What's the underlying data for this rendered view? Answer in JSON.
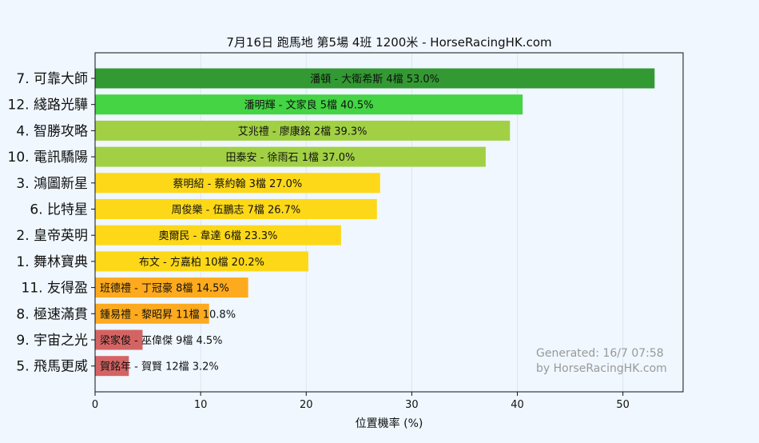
{
  "chart_data": {
    "type": "bar",
    "orientation": "horizontal",
    "title": "7月16日  跑馬地  第5場  4班  1200米 - HorseRacingHK.com",
    "xlabel": "位置機率 (%)",
    "ylabel": "",
    "xlim": [
      0,
      55.7
    ],
    "xticks": [
      "0",
      "10",
      "20",
      "30",
      "40",
      "50"
    ],
    "grid": true,
    "categories": [
      "7. 可靠大師",
      "12. 綫路光驊",
      "4. 智勝攻略",
      "10. 電訊驕陽",
      "3. 鴻圖新星",
      "6. 比特星",
      "2. 皇帝英明",
      "1. 舞林寶典",
      "11. 友得盈",
      "8. 極速滿貫",
      "9. 宇宙之光",
      "5. 飛馬更威"
    ],
    "values": [
      53.0,
      40.5,
      39.3,
      37.0,
      27.0,
      26.7,
      23.3,
      20.2,
      14.5,
      10.8,
      4.5,
      3.2
    ],
    "bar_labels": [
      "潘頓 - 大衛希斯 4檔  53.0%",
      "潘明輝 - 文家良 5檔  40.5%",
      "艾兆禮 - 廖康銘 2檔  39.3%",
      "田泰安 - 徐雨石 1檔  37.0%",
      "蔡明紹 - 蔡約翰 3檔  27.0%",
      "周俊樂 - 伍鵬志 7檔  26.7%",
      "奧爾民 - 韋達 6檔  23.3%",
      "布文 - 方嘉柏 10檔  20.2%",
      "班德禮 - 丁冠豪 8檔  14.5%",
      "鍾易禮 - 黎昭昇 11檔  10.8%",
      "梁家俊 - 巫偉傑 9檔  4.5%",
      "賀銘年 - 賀賢 12檔  3.2%"
    ],
    "bar_colors": [
      "#339933",
      "#44d444",
      "#a2d044",
      "#a2d044",
      "#fdd818",
      "#fdd818",
      "#fdd818",
      "#fdd818",
      "#fdaa1e",
      "#fdaa1e",
      "#d46464",
      "#d46464"
    ],
    "annotation": [
      "Generated: 16/7 07:58",
      "by HorseRacingHK.com"
    ]
  }
}
